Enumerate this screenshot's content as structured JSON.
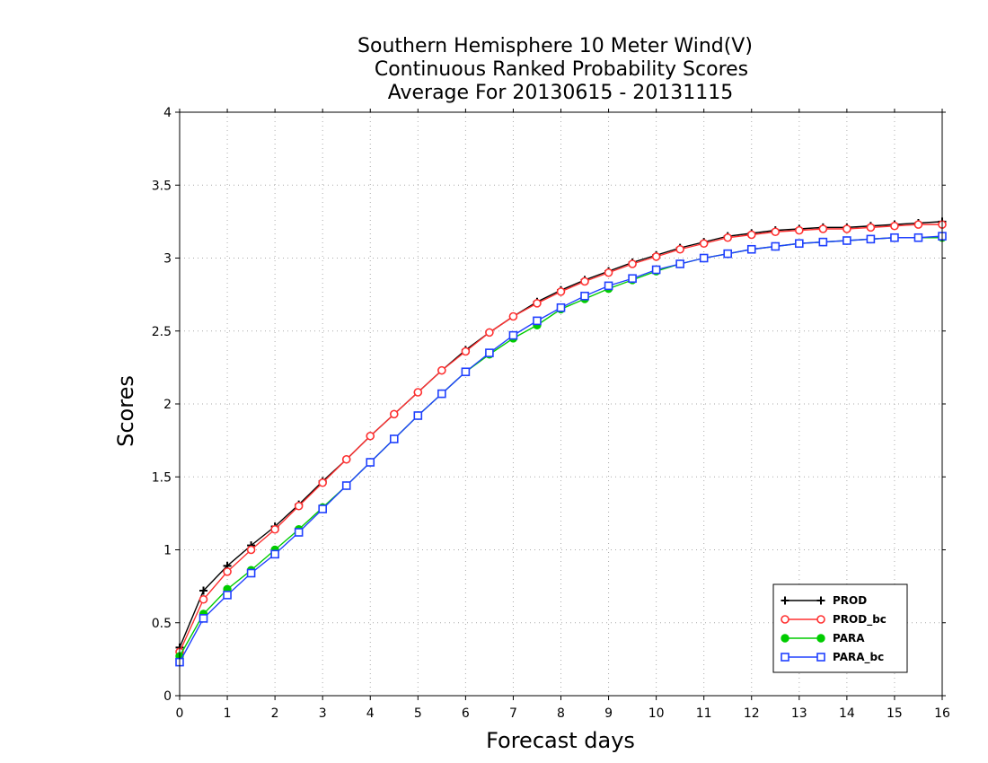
{
  "chart_data": {
    "type": "line",
    "title_lines": [
      "Southern Hemisphere 10 Meter Wind(V)",
      "Continuous Ranked Probability Scores",
      "Average For 20130615 - 20131115"
    ],
    "xlabel": "Forecast days",
    "ylabel": "Scores",
    "xlim": [
      0,
      16
    ],
    "ylim": [
      0,
      4
    ],
    "xticks": [
      0,
      1,
      2,
      3,
      4,
      5,
      6,
      7,
      8,
      9,
      10,
      11,
      12,
      13,
      14,
      15,
      16
    ],
    "yticks": [
      0,
      0.5,
      1,
      1.5,
      2,
      2.5,
      3,
      3.5,
      4
    ],
    "ytick_labels": [
      "0",
      "0.5",
      "1",
      "1.5",
      "2",
      "2.5",
      "3",
      "3.5",
      "4"
    ],
    "grid": true,
    "legend_position": "bottom-right",
    "x": [
      0,
      0.5,
      1,
      1.5,
      2,
      2.5,
      3,
      3.5,
      4,
      4.5,
      5,
      5.5,
      6,
      6.5,
      7,
      7.5,
      8,
      8.5,
      9,
      9.5,
      10,
      10.5,
      11,
      11.5,
      12,
      12.5,
      13,
      13.5,
      14,
      14.5,
      15,
      15.5,
      16
    ],
    "series": [
      {
        "name": "PROD",
        "color": "#000000",
        "marker": "plus",
        "values": [
          0.33,
          0.72,
          0.89,
          1.03,
          1.16,
          1.31,
          1.47,
          1.62,
          1.78,
          1.93,
          2.08,
          2.23,
          2.37,
          2.49,
          2.6,
          2.7,
          2.78,
          2.85,
          2.91,
          2.97,
          3.02,
          3.07,
          3.11,
          3.15,
          3.17,
          3.19,
          3.2,
          3.21,
          3.21,
          3.22,
          3.23,
          3.24,
          3.25
        ]
      },
      {
        "name": "PROD_bc",
        "color": "#ff3030",
        "marker": "circle-open",
        "values": [
          0.3,
          0.66,
          0.85,
          1.0,
          1.14,
          1.3,
          1.46,
          1.62,
          1.78,
          1.93,
          2.08,
          2.23,
          2.36,
          2.49,
          2.6,
          2.69,
          2.77,
          2.84,
          2.9,
          2.96,
          3.01,
          3.06,
          3.1,
          3.14,
          3.16,
          3.18,
          3.19,
          3.2,
          3.2,
          3.21,
          3.22,
          3.23,
          3.23
        ]
      },
      {
        "name": "PARA",
        "color": "#00cc00",
        "marker": "circle-filled",
        "values": [
          0.27,
          0.56,
          0.73,
          0.86,
          1.0,
          1.14,
          1.29,
          1.44,
          1.6,
          1.76,
          1.92,
          2.07,
          2.22,
          2.34,
          2.45,
          2.54,
          2.65,
          2.72,
          2.79,
          2.85,
          2.91,
          2.96,
          3.0,
          3.03,
          3.06,
          3.08,
          3.1,
          3.11,
          3.12,
          3.13,
          3.14,
          3.14,
          3.14
        ]
      },
      {
        "name": "PARA_bc",
        "color": "#2040ff",
        "marker": "square-open",
        "values": [
          0.23,
          0.53,
          0.69,
          0.84,
          0.97,
          1.12,
          1.28,
          1.44,
          1.6,
          1.76,
          1.92,
          2.07,
          2.22,
          2.35,
          2.47,
          2.57,
          2.66,
          2.74,
          2.81,
          2.86,
          2.92,
          2.96,
          3.0,
          3.03,
          3.06,
          3.08,
          3.1,
          3.11,
          3.12,
          3.13,
          3.14,
          3.14,
          3.15
        ]
      }
    ]
  }
}
